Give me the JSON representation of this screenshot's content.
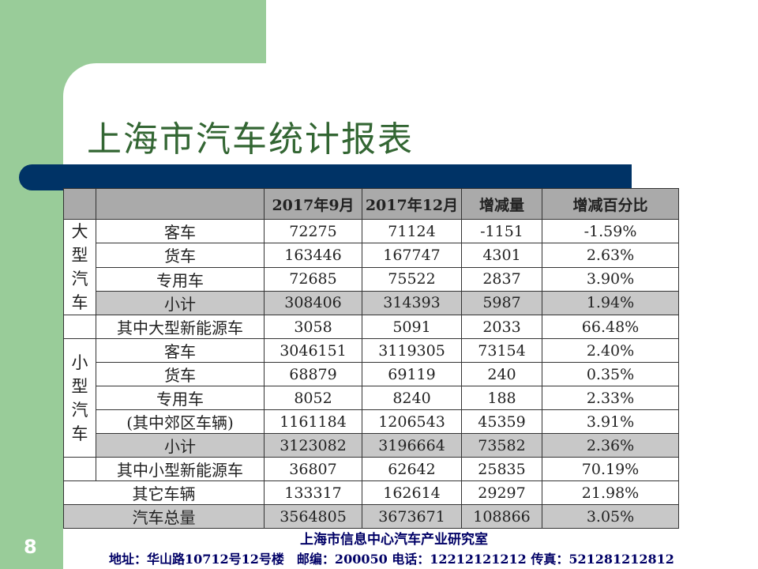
{
  "slide": {
    "title": "上海市汽车统计报表",
    "page_number": "8",
    "footer_org": "上海市信息中心汽车产业研究室",
    "footer_contact": "地址：华山路10712号12号楼　邮编：200050 电话：12212121212 传真：521281212812",
    "colors": {
      "green": "#99cc99",
      "navy": "#003366",
      "title": "#336633",
      "shade": "#c8c8c8"
    }
  },
  "table": {
    "headers": [
      "",
      "",
      "2017年9月",
      "2017年12月",
      "增减量",
      "增减百分比"
    ],
    "group_large": [
      "大",
      "型",
      "汽",
      "车"
    ],
    "group_small": [
      "小",
      "型",
      "汽",
      "车"
    ],
    "large": [
      {
        "name": "客车",
        "sep": "72275",
        "dec": "71124",
        "change": "-1151",
        "pct": "-1.59%"
      },
      {
        "name": "货车",
        "sep": "163446",
        "dec": "167747",
        "change": "4301",
        "pct": "2.63%"
      },
      {
        "name": "专用车",
        "sep": "72685",
        "dec": "75522",
        "change": "2837",
        "pct": "3.90%"
      },
      {
        "name": "小计",
        "sep": "308406",
        "dec": "314393",
        "change": "5987",
        "pct": "1.94%"
      },
      {
        "name": "其中大型新能源车",
        "sep": "3058",
        "dec": "5091",
        "change": "2033",
        "pct": "66.48%"
      }
    ],
    "small": [
      {
        "name": "客车",
        "sep": "3046151",
        "dec": "3119305",
        "change": "73154",
        "pct": "2.40%"
      },
      {
        "name": "货车",
        "sep": "68879",
        "dec": "69119",
        "change": "240",
        "pct": "0.35%"
      },
      {
        "name": "专用车",
        "sep": "8052",
        "dec": "8240",
        "change": "188",
        "pct": "2.33%"
      },
      {
        "name": "(其中郊区车辆)",
        "sep": "1161184",
        "dec": "1206543",
        "change": "45359",
        "pct": "3.91%"
      },
      {
        "name": "小计",
        "sep": "3123082",
        "dec": "3196664",
        "change": "73582",
        "pct": "2.36%"
      },
      {
        "name": "其中小型新能源车",
        "sep": "36807",
        "dec": "62642",
        "change": "25835",
        "pct": "70.19%"
      }
    ],
    "other": {
      "name": "其它车辆",
      "sep": "133317",
      "dec": "162614",
      "change": "29297",
      "pct": "21.98%"
    },
    "total": {
      "name": "汽车总量",
      "sep": "3564805",
      "dec": "3673671",
      "change": "108866",
      "pct": "3.05%"
    }
  }
}
